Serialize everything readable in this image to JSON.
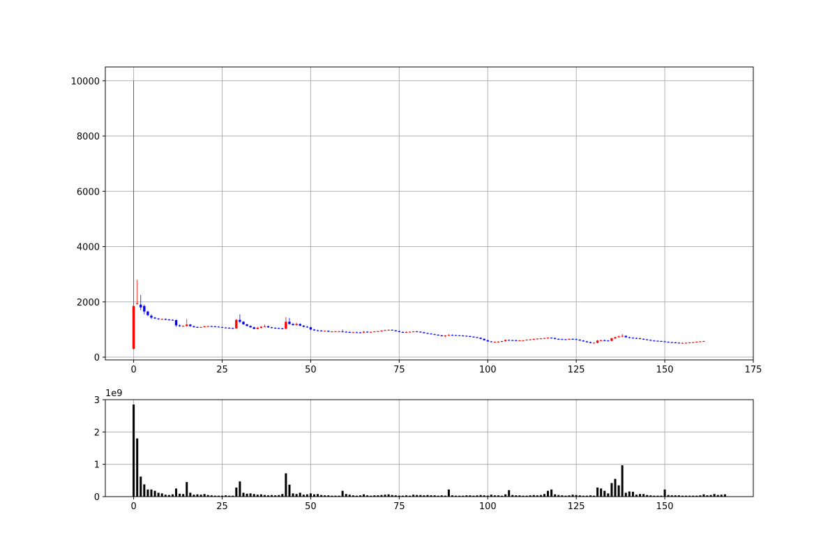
{
  "chart_data": [
    {
      "type": "candlestick",
      "xlim": [
        -8,
        175
      ],
      "ylim": [
        -100,
        10500
      ],
      "x_ticks": [
        0,
        25,
        50,
        75,
        100,
        125,
        150,
        175
      ],
      "y_ticks": [
        0,
        2000,
        4000,
        6000,
        8000,
        10000
      ],
      "grid": true,
      "up_color": "#ff0000",
      "down_color": "#0000ff",
      "candles": [
        [
          300,
          10000,
          280,
          1850
        ],
        [
          1950,
          2800,
          1900,
          1950
        ],
        [
          1900,
          2250,
          1700,
          1800
        ],
        [
          1850,
          1900,
          1550,
          1650
        ],
        [
          1650,
          1680,
          1480,
          1520
        ],
        [
          1500,
          1550,
          1380,
          1430
        ],
        [
          1430,
          1460,
          1380,
          1400
        ],
        [
          1400,
          1420,
          1350,
          1380
        ],
        [
          1380,
          1400,
          1360,
          1380
        ],
        [
          1380,
          1400,
          1340,
          1360
        ],
        [
          1360,
          1380,
          1330,
          1350
        ],
        [
          1350,
          1370,
          1320,
          1340
        ],
        [
          1340,
          1360,
          1100,
          1150
        ],
        [
          1150,
          1180,
          1100,
          1120
        ],
        [
          1120,
          1150,
          1100,
          1130
        ],
        [
          1130,
          1380,
          1100,
          1180
        ],
        [
          1180,
          1200,
          1100,
          1120
        ],
        [
          1120,
          1140,
          1070,
          1090
        ],
        [
          1090,
          1110,
          1060,
          1080
        ],
        [
          1080,
          1100,
          1060,
          1090
        ],
        [
          1090,
          1130,
          1080,
          1120
        ],
        [
          1120,
          1140,
          1100,
          1120
        ],
        [
          1120,
          1140,
          1100,
          1115
        ],
        [
          1115,
          1130,
          1090,
          1100
        ],
        [
          1100,
          1120,
          1080,
          1090
        ],
        [
          1090,
          1100,
          1060,
          1070
        ],
        [
          1070,
          1090,
          1050,
          1060
        ],
        [
          1060,
          1080,
          1040,
          1050
        ],
        [
          1050,
          1070,
          1030,
          1040
        ],
        [
          1040,
          1380,
          1030,
          1350
        ],
        [
          1350,
          1550,
          1230,
          1280
        ],
        [
          1280,
          1300,
          1170,
          1190
        ],
        [
          1190,
          1200,
          1110,
          1130
        ],
        [
          1130,
          1150,
          1060,
          1080
        ],
        [
          1080,
          1100,
          1020,
          1020
        ],
        [
          1020,
          1100,
          1000,
          1060
        ],
        [
          1060,
          1120,
          1040,
          1100
        ],
        [
          1100,
          1180,
          1080,
          1120
        ],
        [
          1120,
          1140,
          1060,
          1080
        ],
        [
          1080,
          1100,
          1040,
          1060
        ],
        [
          1060,
          1080,
          1030,
          1050
        ],
        [
          1050,
          1070,
          1020,
          1040
        ],
        [
          1040,
          1060,
          1010,
          1030
        ],
        [
          1030,
          1450,
          1000,
          1280
        ],
        [
          1280,
          1420,
          1180,
          1200
        ],
        [
          1200,
          1230,
          1140,
          1160
        ],
        [
          1160,
          1250,
          1140,
          1200
        ],
        [
          1200,
          1220,
          1120,
          1140
        ],
        [
          1140,
          1160,
          1080,
          1100
        ],
        [
          1100,
          1130,
          1060,
          1080
        ],
        [
          1080,
          1100,
          980,
          1000
        ],
        [
          1000,
          1020,
          950,
          970
        ],
        [
          970,
          990,
          940,
          960
        ],
        [
          960,
          980,
          930,
          950
        ],
        [
          950,
          970,
          930,
          950
        ],
        [
          950,
          970,
          910,
          920
        ],
        [
          920,
          940,
          900,
          930
        ],
        [
          930,
          950,
          910,
          930
        ],
        [
          930,
          950,
          910,
          930
        ],
        [
          930,
          1000,
          900,
          920
        ],
        [
          920,
          940,
          890,
          910
        ],
        [
          910,
          930,
          880,
          900
        ],
        [
          900,
          920,
          880,
          900
        ],
        [
          900,
          920,
          880,
          895
        ],
        [
          895,
          910,
          870,
          890
        ],
        [
          890,
          950,
          870,
          920
        ],
        [
          920,
          940,
          890,
          910
        ],
        [
          910,
          930,
          890,
          915
        ],
        [
          915,
          940,
          900,
          930
        ],
        [
          930,
          950,
          910,
          940
        ],
        [
          940,
          970,
          920,
          960
        ],
        [
          960,
          990,
          950,
          980
        ],
        [
          980,
          1000,
          960,
          990
        ],
        [
          990,
          1000,
          960,
          970
        ],
        [
          970,
          980,
          930,
          940
        ],
        [
          940,
          960,
          900,
          910
        ],
        [
          910,
          930,
          890,
          905
        ],
        [
          905,
          925,
          890,
          910
        ],
        [
          910,
          930,
          890,
          920
        ],
        [
          920,
          940,
          900,
          930
        ],
        [
          930,
          950,
          910,
          920
        ],
        [
          920,
          940,
          890,
          900
        ],
        [
          900,
          910,
          860,
          870
        ],
        [
          870,
          890,
          840,
          850
        ],
        [
          850,
          870,
          820,
          830
        ],
        [
          830,
          850,
          800,
          810
        ],
        [
          810,
          830,
          780,
          790
        ],
        [
          790,
          800,
          750,
          760
        ],
        [
          760,
          800,
          720,
          780
        ],
        [
          780,
          830,
          770,
          800
        ],
        [
          800,
          820,
          780,
          795
        ],
        [
          795,
          810,
          780,
          790
        ],
        [
          790,
          800,
          770,
          780
        ],
        [
          780,
          800,
          760,
          770
        ],
        [
          770,
          790,
          750,
          760
        ],
        [
          760,
          780,
          730,
          740
        ],
        [
          740,
          760,
          710,
          720
        ],
        [
          720,
          740,
          690,
          700
        ],
        [
          700,
          720,
          650,
          660
        ],
        [
          660,
          680,
          600,
          610
        ],
        [
          610,
          630,
          560,
          570
        ],
        [
          570,
          580,
          540,
          550
        ],
        [
          550,
          570,
          530,
          550
        ],
        [
          550,
          580,
          530,
          560
        ],
        [
          560,
          590,
          540,
          580
        ],
        [
          580,
          640,
          560,
          620
        ],
        [
          620,
          640,
          600,
          615
        ],
        [
          615,
          630,
          600,
          610
        ],
        [
          610,
          630,
          590,
          600
        ],
        [
          600,
          620,
          590,
          605
        ],
        [
          605,
          620,
          590,
          610
        ],
        [
          610,
          640,
          600,
          630
        ],
        [
          630,
          650,
          610,
          640
        ],
        [
          640,
          670,
          620,
          660
        ],
        [
          660,
          680,
          640,
          670
        ],
        [
          670,
          690,
          650,
          680
        ],
        [
          680,
          700,
          660,
          690
        ],
        [
          690,
          720,
          670,
          700
        ],
        [
          700,
          720,
          680,
          690
        ],
        [
          690,
          710,
          640,
          660
        ],
        [
          660,
          680,
          630,
          650
        ],
        [
          650,
          670,
          630,
          645
        ],
        [
          645,
          660,
          620,
          640
        ],
        [
          640,
          680,
          630,
          660
        ],
        [
          660,
          680,
          630,
          650
        ],
        [
          650,
          670,
          620,
          630
        ],
        [
          630,
          650,
          590,
          600
        ],
        [
          600,
          620,
          560,
          570
        ],
        [
          570,
          590,
          530,
          540
        ],
        [
          540,
          560,
          500,
          510
        ],
        [
          510,
          530,
          500,
          520
        ],
        [
          520,
          620,
          500,
          600
        ],
        [
          600,
          630,
          580,
          610
        ],
        [
          610,
          640,
          580,
          600
        ],
        [
          600,
          620,
          570,
          590
        ],
        [
          590,
          700,
          580,
          680
        ],
        [
          680,
          740,
          660,
          720
        ],
        [
          720,
          790,
          700,
          750
        ],
        [
          750,
          840,
          720,
          770
        ],
        [
          770,
          790,
          700,
          720
        ],
        [
          720,
          740,
          680,
          700
        ],
        [
          700,
          720,
          670,
          690
        ],
        [
          690,
          710,
          660,
          680
        ],
        [
          680,
          700,
          650,
          660
        ],
        [
          660,
          680,
          630,
          640
        ],
        [
          640,
          660,
          610,
          620
        ],
        [
          620,
          640,
          590,
          600
        ],
        [
          600,
          620,
          580,
          590
        ],
        [
          590,
          610,
          570,
          580
        ],
        [
          580,
          600,
          560,
          570
        ],
        [
          570,
          590,
          540,
          550
        ],
        [
          550,
          570,
          530,
          540
        ],
        [
          540,
          560,
          520,
          530
        ],
        [
          530,
          550,
          510,
          520
        ],
        [
          520,
          540,
          500,
          510
        ],
        [
          510,
          530,
          500,
          515
        ],
        [
          515,
          530,
          500,
          520
        ],
        [
          520,
          540,
          510,
          530
        ],
        [
          530,
          550,
          520,
          540
        ],
        [
          540,
          570,
          530,
          560
        ],
        [
          560,
          580,
          550,
          570
        ],
        [
          570,
          590,
          560,
          580
        ]
      ]
    },
    {
      "type": "bar",
      "scale_label": "1e9",
      "xlim": [
        -8,
        175
      ],
      "ylim": [
        0,
        3
      ],
      "x_ticks": [
        0,
        25,
        50,
        75,
        100,
        125,
        150
      ],
      "y_ticks": [
        0,
        1,
        2,
        3
      ],
      "grid": true,
      "bar_color": "#000000",
      "values": [
        2.85,
        1.8,
        0.62,
        0.38,
        0.22,
        0.22,
        0.18,
        0.12,
        0.1,
        0.06,
        0.05,
        0.07,
        0.25,
        0.09,
        0.08,
        0.45,
        0.12,
        0.06,
        0.07,
        0.06,
        0.08,
        0.05,
        0.04,
        0.03,
        0.03,
        0.03,
        0.04,
        0.03,
        0.03,
        0.28,
        0.47,
        0.12,
        0.09,
        0.1,
        0.08,
        0.06,
        0.07,
        0.05,
        0.04,
        0.05,
        0.04,
        0.05,
        0.08,
        0.72,
        0.37,
        0.1,
        0.08,
        0.12,
        0.06,
        0.07,
        0.1,
        0.07,
        0.08,
        0.05,
        0.04,
        0.04,
        0.03,
        0.03,
        0.03,
        0.18,
        0.08,
        0.06,
        0.04,
        0.03,
        0.04,
        0.07,
        0.04,
        0.03,
        0.04,
        0.04,
        0.05,
        0.06,
        0.07,
        0.05,
        0.04,
        0.03,
        0.03,
        0.04,
        0.03,
        0.06,
        0.05,
        0.05,
        0.04,
        0.05,
        0.04,
        0.04,
        0.03,
        0.04,
        0.03,
        0.22,
        0.04,
        0.03,
        0.03,
        0.03,
        0.04,
        0.04,
        0.03,
        0.04,
        0.05,
        0.04,
        0.03,
        0.06,
        0.04,
        0.04,
        0.03,
        0.07,
        0.2,
        0.05,
        0.04,
        0.04,
        0.03,
        0.03,
        0.04,
        0.05,
        0.04,
        0.05,
        0.08,
        0.18,
        0.22,
        0.07,
        0.05,
        0.04,
        0.03,
        0.04,
        0.06,
        0.05,
        0.04,
        0.03,
        0.03,
        0.04,
        0.03,
        0.28,
        0.25,
        0.18,
        0.1,
        0.42,
        0.55,
        0.35,
        0.97,
        0.12,
        0.16,
        0.15,
        0.06,
        0.08,
        0.08,
        0.05,
        0.04,
        0.03,
        0.03,
        0.03,
        0.22,
        0.05,
        0.04,
        0.04,
        0.04,
        0.03,
        0.03,
        0.03,
        0.03,
        0.03,
        0.04,
        0.07,
        0.04,
        0.05,
        0.08,
        0.05,
        0.06,
        0.07
      ]
    }
  ]
}
